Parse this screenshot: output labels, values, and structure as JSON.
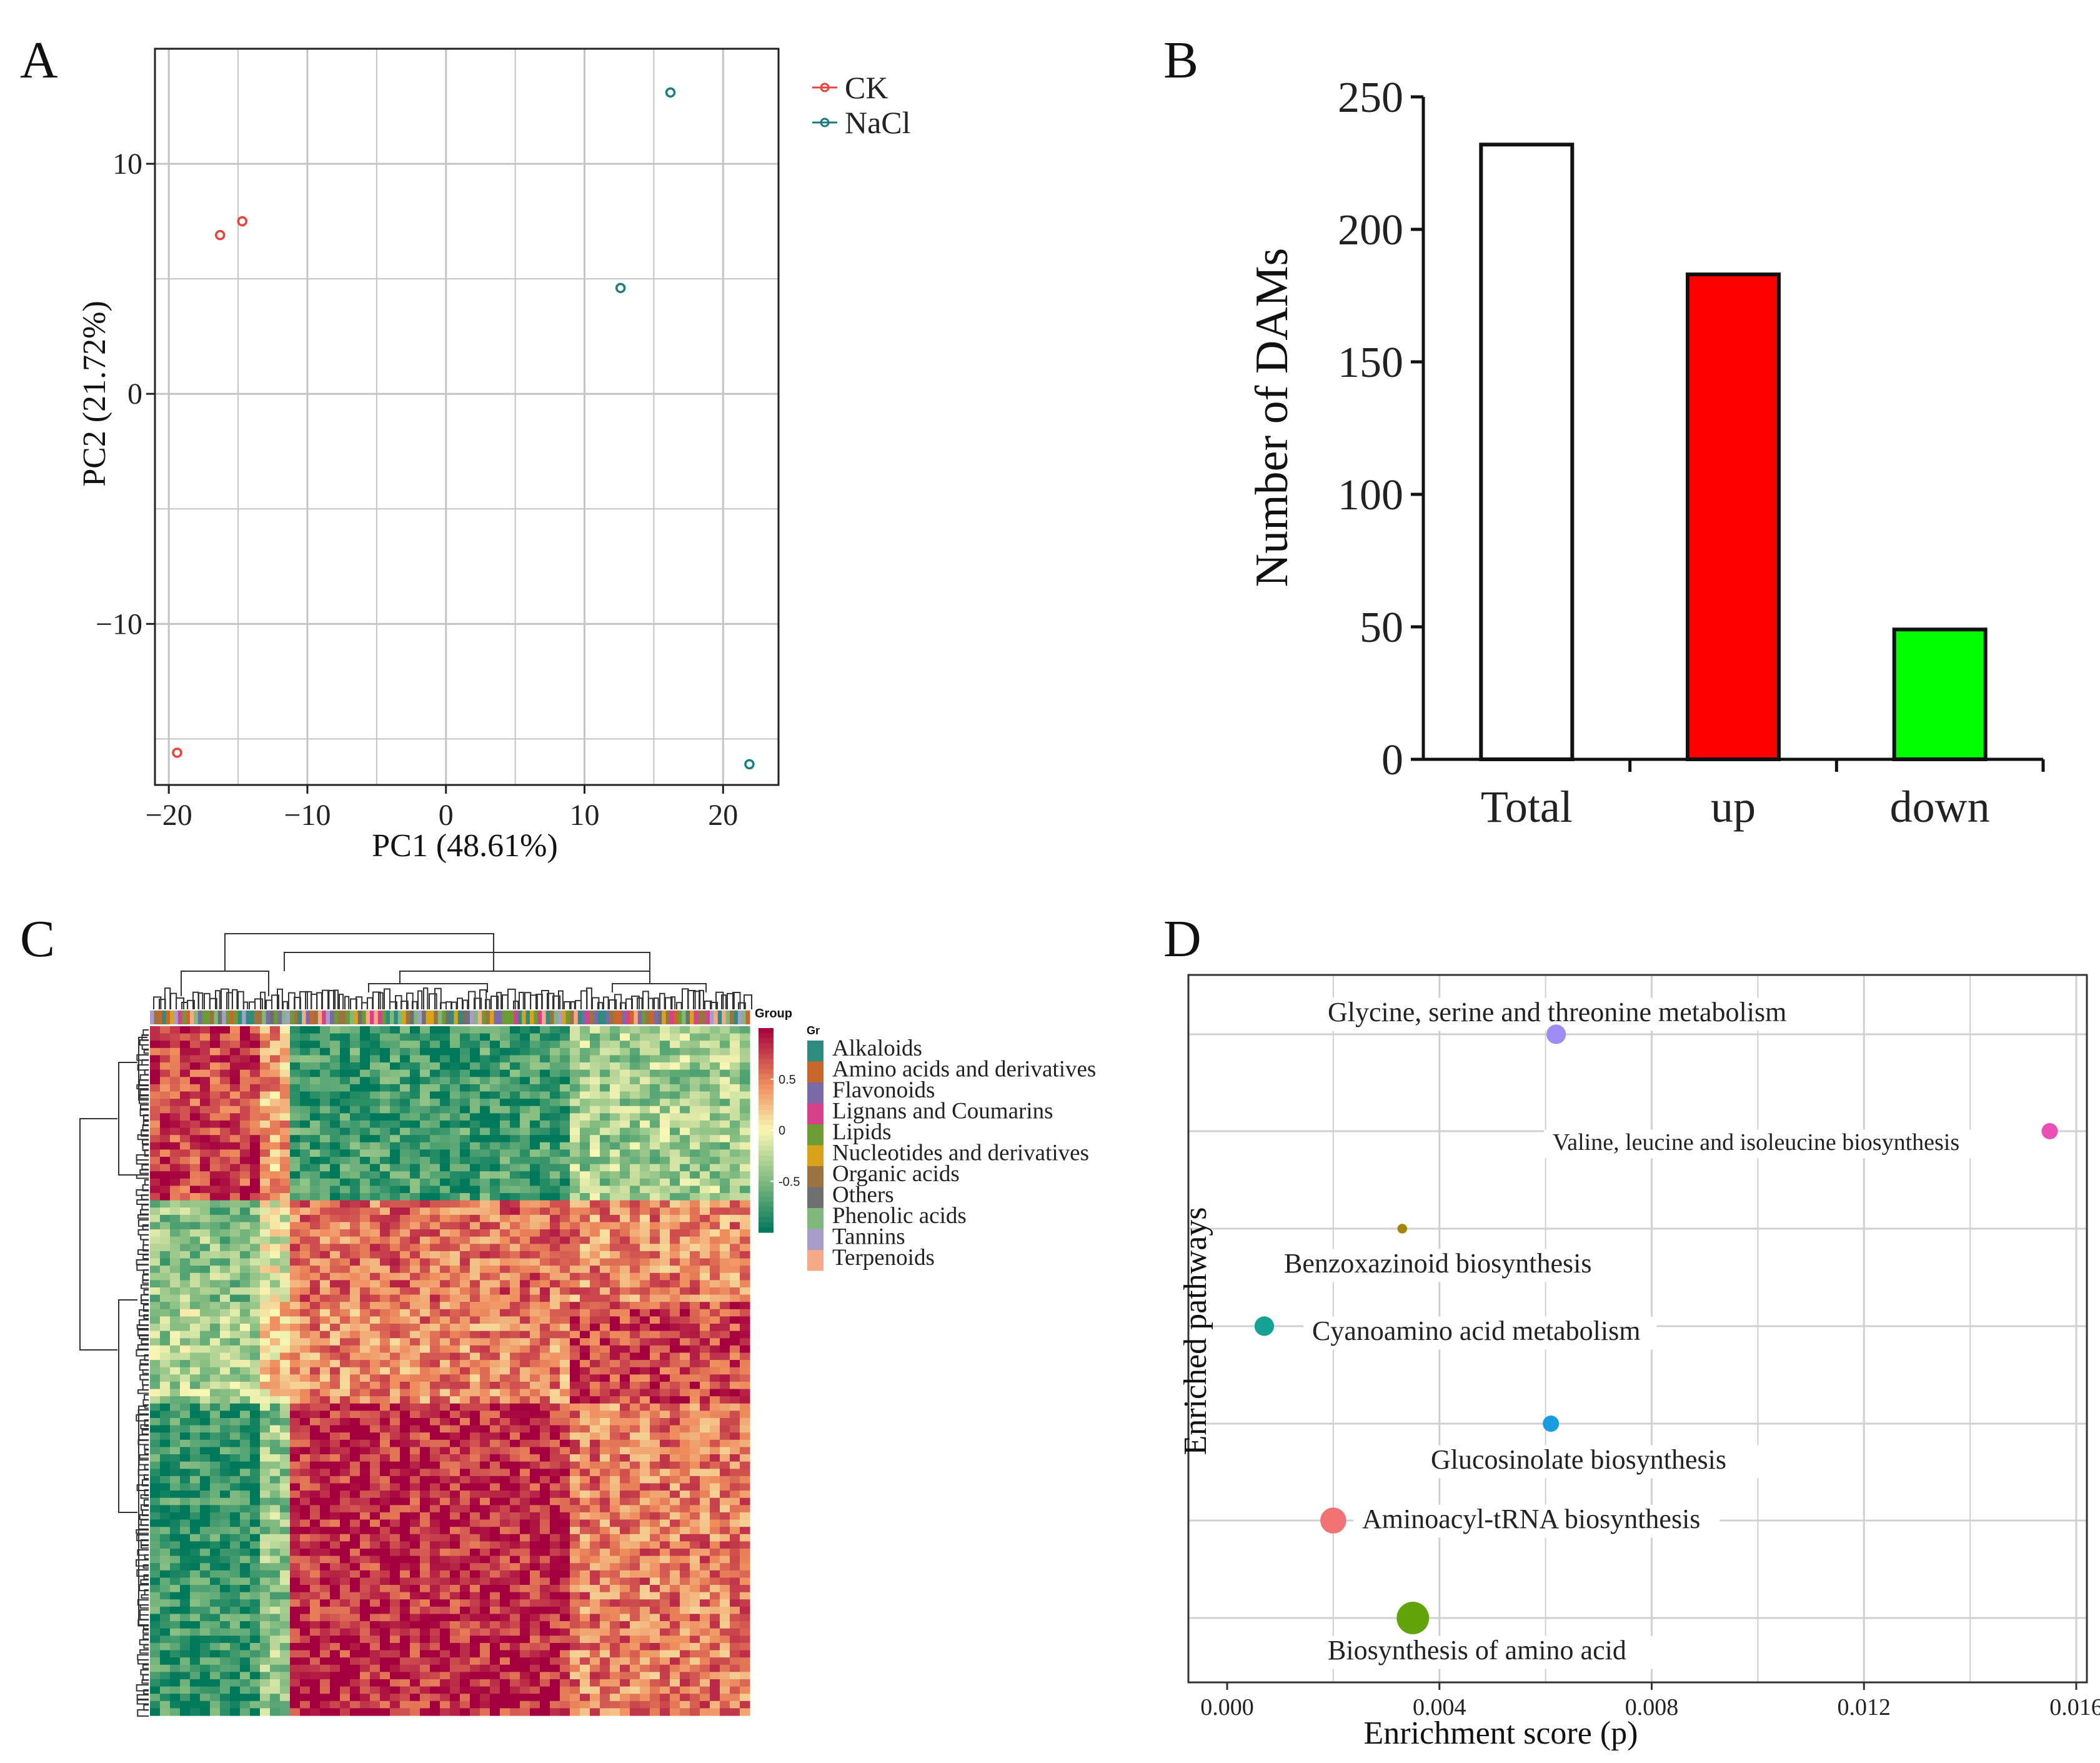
{
  "panels": {
    "a": "A",
    "b": "B",
    "c": "C",
    "d": "D"
  },
  "colors": {
    "ck": "#e8423c",
    "nacl": "#1b7d7d",
    "up": "#ff0000",
    "down": "#00ff00",
    "grid": "#bdbdbd",
    "heat_hi": "#a3003f",
    "heat_mid": "#f7f5b0",
    "heat_lo": "#007a5a"
  },
  "chart_data": [
    {
      "id": "pca",
      "type": "scatter",
      "title": "",
      "xlabel": "PC1 (48.61%)",
      "ylabel": "PC2 (21.72%)",
      "xlim": [
        -21,
        24
      ],
      "ylim": [
        -17,
        15
      ],
      "xticks": [
        -20,
        -10,
        0,
        10,
        20
      ],
      "xtick_labels": [
        "−20",
        "−10",
        "0",
        "10",
        "20"
      ],
      "yticks": [
        10,
        0,
        -10
      ],
      "ytick_labels": [
        "10",
        "0",
        "−10"
      ],
      "grid": true,
      "legend": "top-right outside",
      "series": [
        {
          "name": "CK",
          "color": "#e8423c",
          "points": [
            [
              -16.3,
              6.9
            ],
            [
              -14.7,
              7.5
            ],
            [
              -19.4,
              -15.6
            ]
          ]
        },
        {
          "name": "NaCl",
          "color": "#1b7d7d",
          "points": [
            [
              16.2,
              13.1
            ],
            [
              12.6,
              4.6
            ],
            [
              21.9,
              -16.1
            ]
          ]
        }
      ]
    },
    {
      "id": "dams",
      "type": "bar",
      "title": "",
      "xlabel": "",
      "ylabel": "Number of DAMs",
      "ylim": [
        0,
        250
      ],
      "yticks": [
        0,
        50,
        100,
        150,
        200,
        250
      ],
      "categories": [
        "Total",
        "up",
        "down"
      ],
      "values": [
        232,
        183,
        49
      ],
      "bar_colors": [
        "#ffffff",
        "#ff0000",
        "#00ff00"
      ],
      "grid": false
    },
    {
      "id": "heatmap",
      "type": "heatmap",
      "title": "",
      "annotation_title": "Group",
      "annotation_title_short": "Gr",
      "colorbar_ticks": [
        0.5,
        0,
        -0.5
      ],
      "colorbar_tick_labels": [
        "0.5",
        "0",
        "-0.5"
      ],
      "colorbar_range": [
        -1,
        1
      ],
      "groups": [
        {
          "name": "Alkaloids",
          "color": "#2e8b80"
        },
        {
          "name": "Amino acids and derivatives",
          "color": "#c8662c"
        },
        {
          "name": "Flavonoids",
          "color": "#7a6aa8"
        },
        {
          "name": "Lignans and Coumarins",
          "color": "#d8408c"
        },
        {
          "name": "Lipids",
          "color": "#6c9a35"
        },
        {
          "name": "Nucleotides and derivatives",
          "color": "#d9a21b"
        },
        {
          "name": "Organic acids",
          "color": "#9a7440"
        },
        {
          "name": "Others",
          "color": "#6f6f6f"
        },
        {
          "name": "Phenolic acids",
          "color": "#7fb87a"
        },
        {
          "name": "Tannins",
          "color": "#a89cc8"
        },
        {
          "name": "Terpenoids",
          "color": "#f7a887"
        }
      ]
    },
    {
      "id": "enrichment",
      "type": "scatter",
      "title": "",
      "xlabel": "Enrichment score (p)",
      "ylabel": "Enriched pathways",
      "xlim": [
        0,
        0.0162
      ],
      "xticks": [
        0,
        0.004,
        0.008,
        0.012,
        0.016
      ],
      "xtick_labels": [
        "0.000",
        "0.004",
        "0.008",
        "0.012",
        "0.016"
      ],
      "grid": true,
      "pathways": [
        {
          "name": "Glycine, serine and threonine metabolism",
          "x": 0.0062,
          "size": 6,
          "color": "#9f8cf2"
        },
        {
          "name": "Valine, leucine and isoleucine biosynthesis",
          "x": 0.0155,
          "size": 5,
          "color": "#ea4fb6"
        },
        {
          "name": "Benzoxazinoid biosynthesis",
          "x": 0.0033,
          "size": 3,
          "color": "#a0860f"
        },
        {
          "name": "Cyanoamino acid metabolism",
          "x": 0.0007,
          "size": 6,
          "color": "#14a392"
        },
        {
          "name": "Glucosinolate biosynthesis",
          "x": 0.0061,
          "size": 5,
          "color": "#1a9de0"
        },
        {
          "name": "Aminoacyl-tRNA biosynthesis",
          "x": 0.002,
          "size": 8,
          "color": "#f07272"
        },
        {
          "name": "Biosynthesis of amino acid",
          "x": 0.0035,
          "size": 10,
          "color": "#62a30b"
        }
      ]
    }
  ]
}
